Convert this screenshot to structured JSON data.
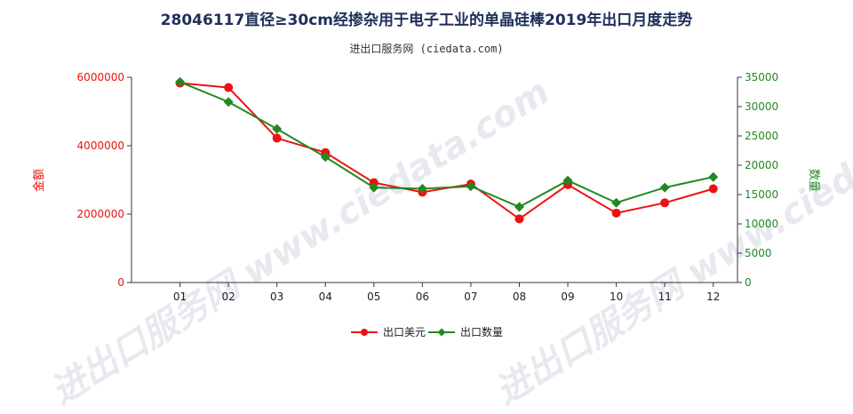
{
  "title": "28046117直径≥30cm经掺杂用于电子工业的单晶硅棒2019年出口月度走势",
  "subtitle": "进出口服务网 (ciedata.com)",
  "watermark": "进出口服务网 www.ciedata.com",
  "colors": {
    "usd": "#ee1111",
    "qty": "#228822",
    "title": "#1f2f5a",
    "axis": "#333333"
  },
  "chart_data": {
    "type": "line",
    "categories": [
      "01",
      "02",
      "03",
      "04",
      "05",
      "06",
      "07",
      "08",
      "09",
      "10",
      "11",
      "12"
    ],
    "series": [
      {
        "name": "出口美元",
        "axis": "left",
        "values": [
          5830000,
          5700000,
          4220000,
          3800000,
          2920000,
          2640000,
          2880000,
          1860000,
          2860000,
          2030000,
          2330000,
          2740000
        ]
      },
      {
        "name": "出口数量",
        "axis": "right",
        "values": [
          34200,
          30800,
          26200,
          21400,
          16200,
          16000,
          16400,
          12900,
          17400,
          13600,
          16200,
          18000
        ]
      }
    ],
    "y_left": {
      "label": "金额",
      "min": 0,
      "max": 6000000,
      "ticks": [
        0,
        2000000,
        4000000,
        6000000
      ]
    },
    "y_right": {
      "label": "数量",
      "min": 0,
      "max": 35000,
      "ticks": [
        0,
        5000,
        10000,
        15000,
        20000,
        25000,
        30000,
        35000
      ]
    },
    "legend_position": "bottom-center",
    "grid": false
  }
}
